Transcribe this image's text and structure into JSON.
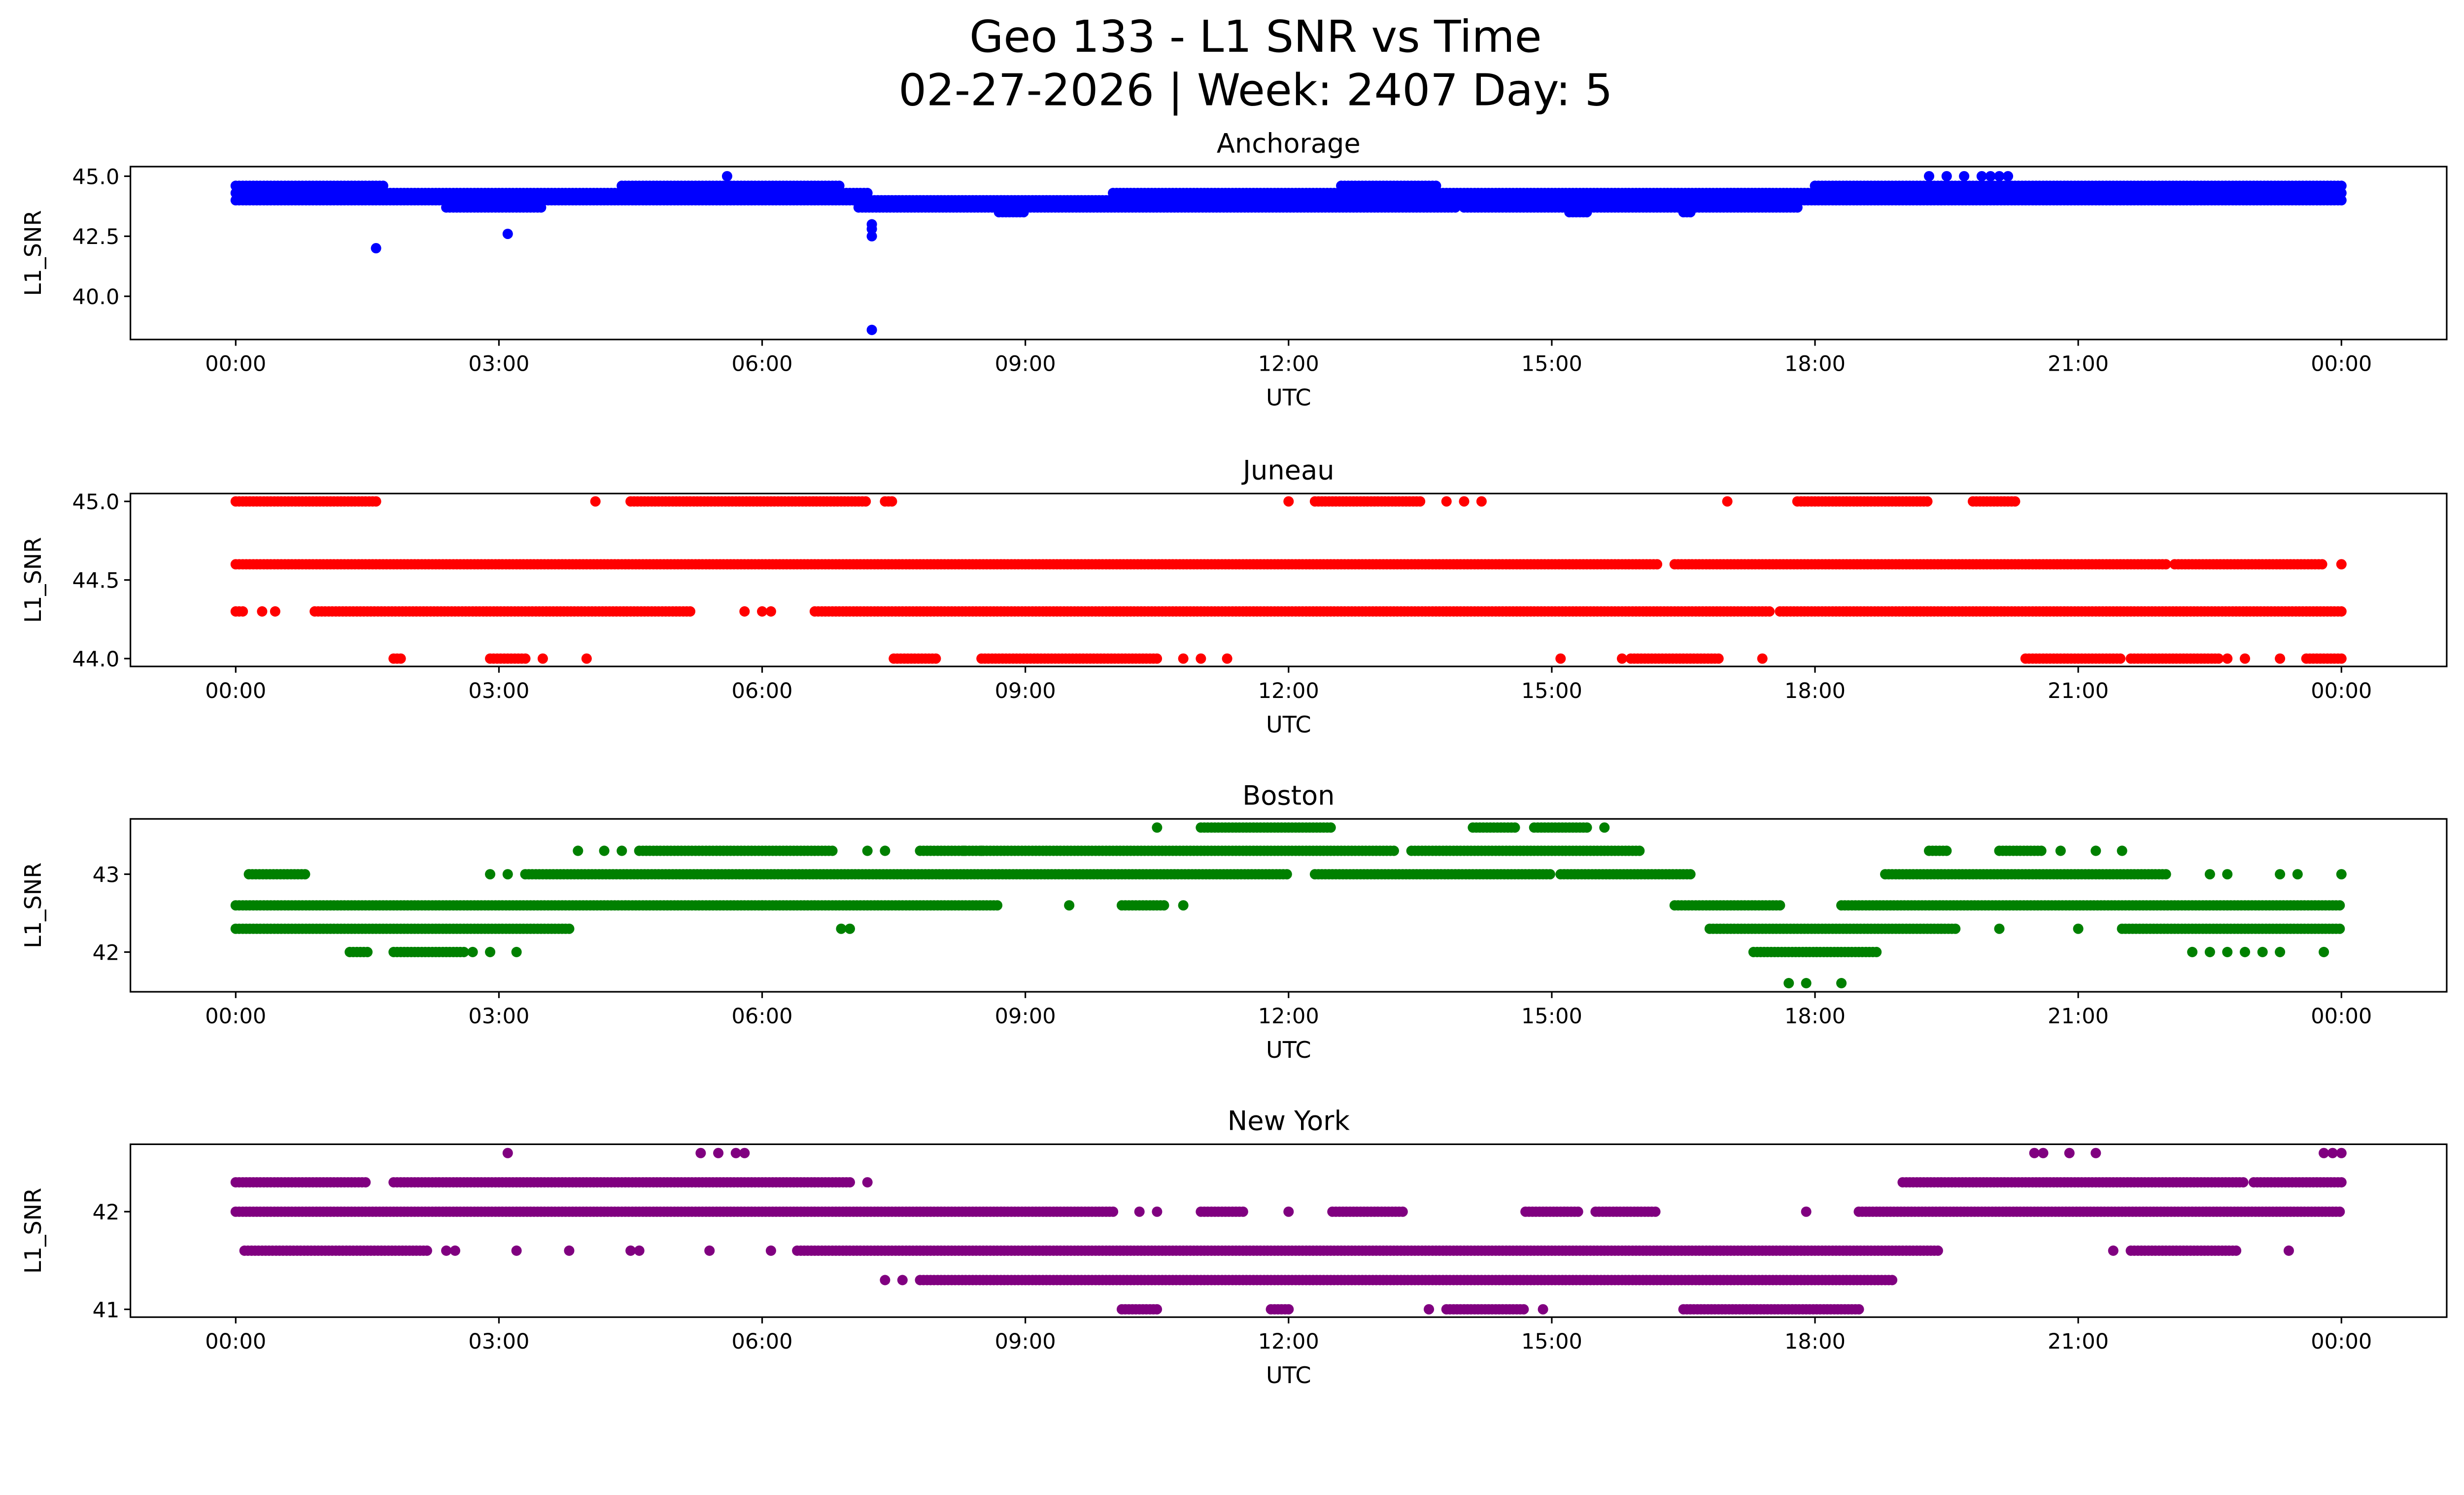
{
  "title_line1": "Geo 133 - L1 SNR vs Time",
  "title_line2": "02-27-2026 | Week: 2407 Day: 5",
  "chart_data": [
    {
      "type": "scatter",
      "title": "Anchorage",
      "xlabel": "UTC",
      "ylabel": "L1_SNR",
      "color": "#0000ff",
      "xlim_hours": [
        -1.2,
        25.2
      ],
      "ylim": [
        38.2,
        45.4
      ],
      "yticks": [
        {
          "v": 40.0,
          "label": "40.0"
        },
        {
          "v": 42.5,
          "label": "42.5"
        },
        {
          "v": 45.0,
          "label": "45.0"
        }
      ],
      "bands": [
        {
          "y": 44.6,
          "ranges": [
            [
              0,
              1.7
            ],
            [
              4.4,
              6.9
            ],
            [
              12.6,
              13.7
            ],
            [
              18.0,
              24
            ]
          ]
        },
        {
          "y": 44.3,
          "ranges": [
            [
              0,
              7.2
            ],
            [
              10.0,
              17.5
            ],
            [
              17.0,
              24
            ]
          ]
        },
        {
          "y": 44.0,
          "ranges": [
            [
              0,
              24
            ]
          ]
        },
        {
          "y": 43.7,
          "ranges": [
            [
              2.4,
              3.5
            ],
            [
              7.1,
              13.9
            ],
            [
              14.0,
              17.8
            ]
          ]
        },
        {
          "y": 43.5,
          "ranges": [
            [
              8.7,
              9.0
            ],
            [
              15.2,
              15.4
            ],
            [
              16.5,
              16.6
            ]
          ]
        }
      ],
      "points": [
        [
          5.6,
          45.0
        ],
        [
          19.3,
          45.0
        ],
        [
          19.5,
          45.0
        ],
        [
          19.7,
          45.0
        ],
        [
          19.9,
          45.0
        ],
        [
          20.0,
          45.0
        ],
        [
          20.1,
          45.0
        ],
        [
          20.2,
          45.0
        ],
        [
          1.6,
          42.0
        ],
        [
          3.1,
          42.6
        ],
        [
          7.25,
          43.0
        ],
        [
          7.25,
          42.8
        ],
        [
          7.25,
          42.5
        ],
        [
          7.25,
          38.6
        ]
      ]
    },
    {
      "type": "scatter",
      "title": "Juneau",
      "xlabel": "UTC",
      "ylabel": "L1_SNR",
      "color": "#ff0000",
      "xlim_hours": [
        -1.2,
        25.2
      ],
      "ylim": [
        43.95,
        45.05
      ],
      "yticks": [
        {
          "v": 44.0,
          "label": "44.0"
        },
        {
          "v": 44.5,
          "label": "44.5"
        },
        {
          "v": 45.0,
          "label": "45.0"
        }
      ],
      "bands": [
        {
          "y": 45.0,
          "ranges": [
            [
              0,
              1.6
            ],
            [
              4.5,
              7.2
            ],
            [
              7.4,
              7.5
            ],
            [
              12.3,
              13.5
            ],
            [
              17.8,
              19.3
            ],
            [
              19.8,
              20.3
            ]
          ]
        },
        {
          "y": 44.6,
          "ranges": [
            [
              0,
              16.2
            ],
            [
              16.4,
              22.0
            ],
            [
              22.1,
              23.8
            ]
          ]
        },
        {
          "y": 44.3,
          "ranges": [
            [
              0,
              0.1
            ],
            [
              0.9,
              5.2
            ],
            [
              6.6,
              17.5
            ],
            [
              17.6,
              24
            ]
          ]
        },
        {
          "y": 44.0,
          "ranges": [
            [
              1.8,
              1.9
            ],
            [
              2.9,
              3.3
            ],
            [
              7.5,
              8.0
            ],
            [
              8.5,
              10.5
            ],
            [
              15.9,
              16.9
            ],
            [
              20.4,
              21.5
            ],
            [
              21.6,
              22.6
            ],
            [
              23.6,
              24
            ]
          ]
        }
      ],
      "points": [
        [
          4.1,
          45.0
        ],
        [
          12.0,
          45.0
        ],
        [
          13.8,
          45.0
        ],
        [
          14.0,
          45.0
        ],
        [
          14.2,
          45.0
        ],
        [
          17.0,
          45.0
        ],
        [
          24.0,
          44.6
        ],
        [
          0.3,
          44.3
        ],
        [
          0.45,
          44.3
        ],
        [
          5.8,
          44.3
        ],
        [
          6.0,
          44.3
        ],
        [
          6.1,
          44.3
        ],
        [
          3.5,
          44.0
        ],
        [
          4.0,
          44.0
        ],
        [
          10.8,
          44.0
        ],
        [
          11.0,
          44.0
        ],
        [
          11.3,
          44.0
        ],
        [
          15.1,
          44.0
        ],
        [
          15.8,
          44.0
        ],
        [
          17.4,
          44.0
        ],
        [
          22.7,
          44.0
        ],
        [
          22.9,
          44.0
        ],
        [
          23.3,
          44.0
        ]
      ]
    },
    {
      "type": "scatter",
      "title": "Boston",
      "xlabel": "UTC",
      "ylabel": "L1_SNR",
      "color": "#008000",
      "xlim_hours": [
        -1.2,
        25.2
      ],
      "ylim": [
        41.49,
        43.71
      ],
      "yticks": [
        {
          "v": 42,
          "label": "42"
        },
        {
          "v": 43,
          "label": "43"
        }
      ],
      "bands": [
        {
          "y": 43.6,
          "ranges": [
            [
              11.0,
              12.5
            ],
            [
              14.1,
              14.6
            ],
            [
              14.8,
              15.4
            ]
          ]
        },
        {
          "y": 43.3,
          "ranges": [
            [
              4.6,
              6.8
            ],
            [
              7.8,
              13.2
            ],
            [
              13.4,
              16.0
            ],
            [
              19.3,
              19.5
            ],
            [
              20.1,
              20.6
            ]
          ]
        },
        {
          "y": 43.0,
          "ranges": [
            [
              0.15,
              0.8
            ],
            [
              3.3,
              12.0
            ],
            [
              12.3,
              15.0
            ],
            [
              15.1,
              16.6
            ],
            [
              18.8,
              22.0
            ]
          ]
        },
        {
          "y": 42.6,
          "ranges": [
            [
              0,
              8.7
            ],
            [
              10.1,
              10.6
            ],
            [
              16.4,
              17.6
            ],
            [
              18.3,
              24
            ]
          ]
        },
        {
          "y": 42.3,
          "ranges": [
            [
              0,
              3.8
            ],
            [
              16.8,
              19.6
            ],
            [
              21.5,
              24
            ]
          ]
        },
        {
          "y": 42.0,
          "ranges": [
            [
              1.3,
              1.5
            ],
            [
              1.8,
              2.6
            ],
            [
              17.3,
              18.7
            ]
          ]
        }
      ],
      "points": [
        [
          10.5,
          43.6
        ],
        [
          15.6,
          43.6
        ],
        [
          3.9,
          43.3
        ],
        [
          4.2,
          43.3
        ],
        [
          4.4,
          43.3
        ],
        [
          7.2,
          43.3
        ],
        [
          7.4,
          43.3
        ],
        [
          8.3,
          43.3
        ],
        [
          8.5,
          43.3
        ],
        [
          20.8,
          43.3
        ],
        [
          21.2,
          43.3
        ],
        [
          21.5,
          43.3
        ],
        [
          2.9,
          43.0
        ],
        [
          3.1,
          43.0
        ],
        [
          22.5,
          43.0
        ],
        [
          22.7,
          43.0
        ],
        [
          23.3,
          43.0
        ],
        [
          23.5,
          43.0
        ],
        [
          24.0,
          43.0
        ],
        [
          6.0,
          42.6
        ],
        [
          9.5,
          42.6
        ],
        [
          10.8,
          42.6
        ],
        [
          6.9,
          42.3
        ],
        [
          7.0,
          42.3
        ],
        [
          20.1,
          42.3
        ],
        [
          21.0,
          42.3
        ],
        [
          2.7,
          42.0
        ],
        [
          2.9,
          42.0
        ],
        [
          3.2,
          42.0
        ],
        [
          22.3,
          42.0
        ],
        [
          22.5,
          42.0
        ],
        [
          22.7,
          42.0
        ],
        [
          22.9,
          42.0
        ],
        [
          23.1,
          42.0
        ],
        [
          23.3,
          42.0
        ],
        [
          23.8,
          42.0
        ],
        [
          17.7,
          41.6
        ],
        [
          17.9,
          41.6
        ],
        [
          18.3,
          41.6
        ]
      ]
    },
    {
      "type": "scatter",
      "title": "New York",
      "xlabel": "UTC",
      "ylabel": "L1_SNR",
      "color": "#800080",
      "xlim_hours": [
        -1.2,
        25.2
      ],
      "ylim": [
        40.92,
        42.69
      ],
      "yticks": [
        {
          "v": 41,
          "label": "41"
        },
        {
          "v": 42,
          "label": "42"
        }
      ],
      "bands": [
        {
          "y": 42.3,
          "ranges": [
            [
              0,
              1.5
            ],
            [
              1.8,
              7.0
            ],
            [
              19.0,
              22.9
            ],
            [
              23.0,
              24
            ]
          ]
        },
        {
          "y": 42.0,
          "ranges": [
            [
              0,
              10.0
            ],
            [
              11.0,
              11.5
            ],
            [
              12.5,
              13.3
            ],
            [
              14.7,
              15.3
            ],
            [
              15.5,
              16.2
            ],
            [
              18.5,
              24
            ]
          ]
        },
        {
          "y": 41.6,
          "ranges": [
            [
              0.1,
              2.2
            ],
            [
              6.4,
              19.4
            ],
            [
              21.6,
              22.8
            ]
          ]
        },
        {
          "y": 41.3,
          "ranges": [
            [
              7.8,
              18.9
            ]
          ]
        },
        {
          "y": 41.0,
          "ranges": [
            [
              10.1,
              10.5
            ],
            [
              11.8,
              12.0
            ],
            [
              13.8,
              14.7
            ],
            [
              16.5,
              18.5
            ]
          ]
        }
      ],
      "points": [
        [
          3.1,
          42.6
        ],
        [
          5.3,
          42.6
        ],
        [
          5.5,
          42.6
        ],
        [
          5.7,
          42.6
        ],
        [
          5.8,
          42.6
        ],
        [
          20.5,
          42.6
        ],
        [
          20.6,
          42.6
        ],
        [
          20.9,
          42.6
        ],
        [
          21.2,
          42.6
        ],
        [
          23.8,
          42.6
        ],
        [
          23.9,
          42.6
        ],
        [
          24.0,
          42.6
        ],
        [
          7.2,
          42.3
        ],
        [
          10.3,
          42.0
        ],
        [
          10.5,
          42.0
        ],
        [
          12.0,
          42.0
        ],
        [
          17.9,
          42.0
        ],
        [
          2.4,
          41.6
        ],
        [
          2.5,
          41.6
        ],
        [
          3.2,
          41.6
        ],
        [
          3.8,
          41.6
        ],
        [
          4.5,
          41.6
        ],
        [
          4.6,
          41.6
        ],
        [
          5.4,
          41.6
        ],
        [
          6.1,
          41.6
        ],
        [
          21.4,
          41.6
        ],
        [
          23.4,
          41.6
        ],
        [
          7.4,
          41.3
        ],
        [
          7.6,
          41.3
        ],
        [
          13.6,
          41.0
        ],
        [
          14.9,
          41.0
        ]
      ]
    }
  ],
  "xticks": [
    {
      "h": 0,
      "label": "00:00"
    },
    {
      "h": 3,
      "label": "03:00"
    },
    {
      "h": 6,
      "label": "06:00"
    },
    {
      "h": 9,
      "label": "09:00"
    },
    {
      "h": 12,
      "label": "12:00"
    },
    {
      "h": 15,
      "label": "15:00"
    },
    {
      "h": 18,
      "label": "18:00"
    },
    {
      "h": 21,
      "label": "21:00"
    },
    {
      "h": 24,
      "label": "00:00"
    }
  ]
}
